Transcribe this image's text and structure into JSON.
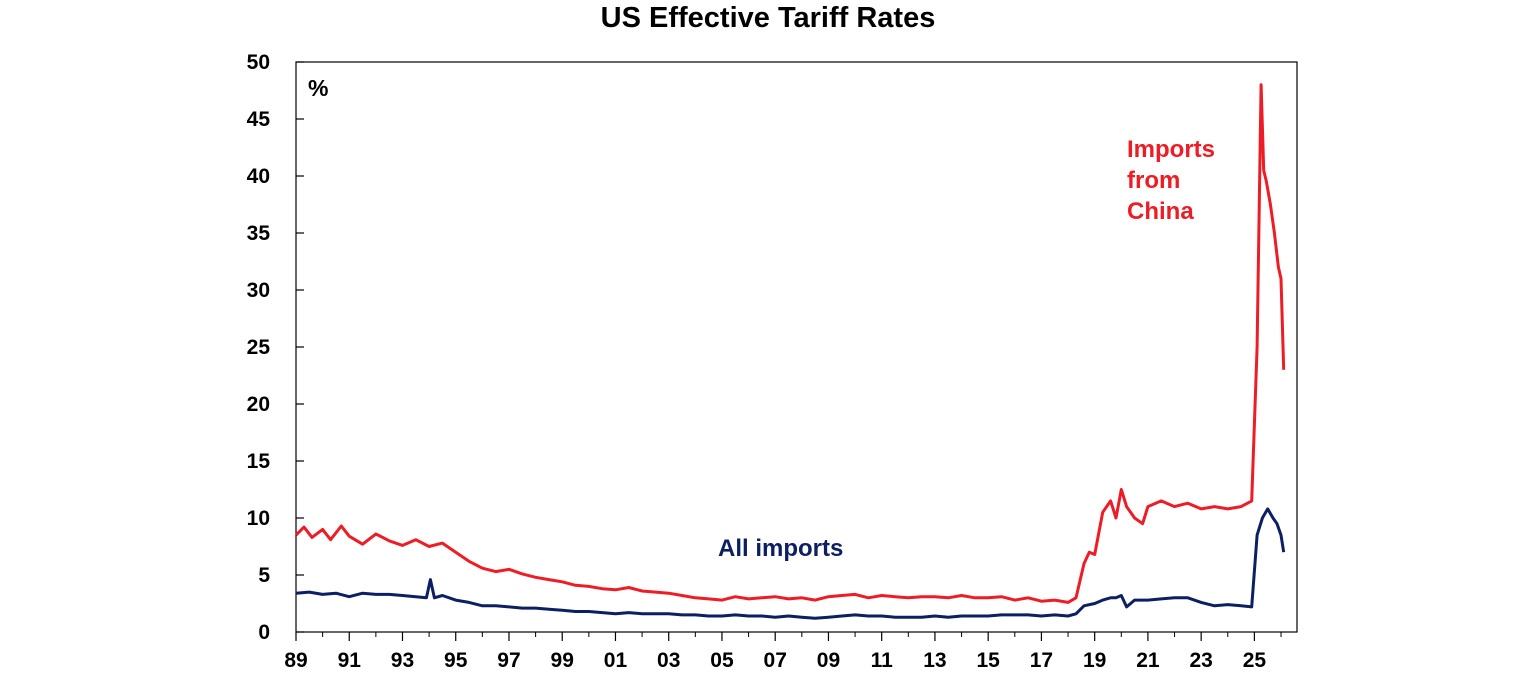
{
  "chart_data": {
    "type": "line",
    "title": "US Effective Tariff Rates",
    "unit_label": "%",
    "ylim": [
      0,
      50
    ],
    "y_ticks": [
      0,
      5,
      10,
      15,
      20,
      25,
      30,
      35,
      40,
      45,
      50
    ],
    "xlim": [
      1989,
      2026.6
    ],
    "x_ticks": [
      1989,
      1991,
      1993,
      1995,
      1997,
      1999,
      2001,
      2003,
      2005,
      2007,
      2009,
      2011,
      2013,
      2015,
      2017,
      2019,
      2021,
      2023,
      2025
    ],
    "x_tick_labels": [
      "89",
      "91",
      "93",
      "95",
      "97",
      "99",
      "01",
      "03",
      "05",
      "07",
      "09",
      "11",
      "13",
      "15",
      "17",
      "19",
      "21",
      "23",
      "25"
    ],
    "grid": false,
    "series": [
      {
        "name": "Imports from China",
        "label_lines": [
          "Imports",
          "from",
          "China"
        ],
        "color": "#ee1c25",
        "x": [
          1989.0,
          1989.3,
          1989.6,
          1990.0,
          1990.3,
          1990.7,
          1991.0,
          1991.5,
          1992.0,
          1992.5,
          1993.0,
          1993.5,
          1994.0,
          1994.5,
          1995.0,
          1995.5,
          1996.0,
          1996.5,
          1997.0,
          1997.5,
          1998.0,
          1998.5,
          1999.0,
          1999.5,
          2000.0,
          2000.5,
          2001.0,
          2001.5,
          2002.0,
          2002.5,
          2003.0,
          2003.5,
          2004.0,
          2004.5,
          2005.0,
          2005.5,
          2006.0,
          2006.5,
          2007.0,
          2007.5,
          2008.0,
          2008.5,
          2009.0,
          2009.5,
          2010.0,
          2010.5,
          2011.0,
          2011.5,
          2012.0,
          2012.5,
          2013.0,
          2013.5,
          2014.0,
          2014.5,
          2015.0,
          2015.5,
          2016.0,
          2016.5,
          2017.0,
          2017.5,
          2018.0,
          2018.3,
          2018.6,
          2018.8,
          2019.0,
          2019.3,
          2019.6,
          2019.8,
          2020.0,
          2020.2,
          2020.5,
          2020.8,
          2021.0,
          2021.5,
          2022.0,
          2022.5,
          2023.0,
          2023.5,
          2024.0,
          2024.5,
          2024.9,
          2025.1,
          2025.25,
          2025.35,
          2025.45,
          2025.6,
          2025.75,
          2025.9,
          2026.0,
          2026.1
        ],
        "values": [
          8.5,
          9.2,
          8.3,
          9.0,
          8.1,
          9.3,
          8.4,
          7.7,
          8.6,
          8.0,
          7.6,
          8.1,
          7.5,
          7.8,
          7.0,
          6.2,
          5.6,
          5.3,
          5.5,
          5.1,
          4.8,
          4.6,
          4.4,
          4.1,
          4.0,
          3.8,
          3.7,
          3.9,
          3.6,
          3.5,
          3.4,
          3.2,
          3.0,
          2.9,
          2.8,
          3.1,
          2.9,
          3.0,
          3.1,
          2.9,
          3.0,
          2.8,
          3.1,
          3.2,
          3.3,
          3.0,
          3.2,
          3.1,
          3.0,
          3.1,
          3.1,
          3.0,
          3.2,
          3.0,
          3.0,
          3.1,
          2.8,
          3.0,
          2.7,
          2.8,
          2.6,
          3.0,
          6.0,
          7.0,
          6.8,
          10.5,
          11.5,
          10.0,
          12.5,
          11.0,
          10.0,
          9.5,
          11.0,
          11.5,
          11.0,
          11.3,
          10.8,
          11.0,
          10.8,
          11.0,
          11.5,
          25.0,
          48.0,
          40.5,
          39.5,
          37.5,
          35.0,
          32.0,
          31.0,
          23.0
        ]
      },
      {
        "name": "All imports",
        "color": "#0d1f63",
        "x": [
          1989.0,
          1989.5,
          1990.0,
          1990.5,
          1991.0,
          1991.5,
          1992.0,
          1992.5,
          1993.0,
          1993.5,
          1993.9,
          1994.05,
          1994.2,
          1994.5,
          1995.0,
          1995.5,
          1996.0,
          1996.5,
          1997.0,
          1997.5,
          1998.0,
          1998.5,
          1999.0,
          1999.5,
          2000.0,
          2000.5,
          2001.0,
          2001.5,
          2002.0,
          2002.5,
          2003.0,
          2003.5,
          2004.0,
          2004.5,
          2005.0,
          2005.5,
          2006.0,
          2006.5,
          2007.0,
          2007.5,
          2008.0,
          2008.5,
          2009.0,
          2009.5,
          2010.0,
          2010.5,
          2011.0,
          2011.5,
          2012.0,
          2012.5,
          2013.0,
          2013.5,
          2014.0,
          2014.5,
          2015.0,
          2015.5,
          2016.0,
          2016.5,
          2017.0,
          2017.5,
          2018.0,
          2018.3,
          2018.6,
          2019.0,
          2019.3,
          2019.6,
          2019.8,
          2020.0,
          2020.2,
          2020.5,
          2021.0,
          2021.5,
          2022.0,
          2022.5,
          2023.0,
          2023.5,
          2024.0,
          2024.5,
          2024.9,
          2025.1,
          2025.3,
          2025.5,
          2025.7,
          2025.85,
          2026.0,
          2026.1
        ],
        "values": [
          3.4,
          3.5,
          3.3,
          3.4,
          3.1,
          3.4,
          3.3,
          3.3,
          3.2,
          3.1,
          3.0,
          4.6,
          3.0,
          3.2,
          2.8,
          2.6,
          2.3,
          2.3,
          2.2,
          2.1,
          2.1,
          2.0,
          1.9,
          1.8,
          1.8,
          1.7,
          1.6,
          1.7,
          1.6,
          1.6,
          1.6,
          1.5,
          1.5,
          1.4,
          1.4,
          1.5,
          1.4,
          1.4,
          1.3,
          1.4,
          1.3,
          1.2,
          1.3,
          1.4,
          1.5,
          1.4,
          1.4,
          1.3,
          1.3,
          1.3,
          1.4,
          1.3,
          1.4,
          1.4,
          1.4,
          1.5,
          1.5,
          1.5,
          1.4,
          1.5,
          1.4,
          1.6,
          2.3,
          2.5,
          2.8,
          3.0,
          3.0,
          3.2,
          2.2,
          2.8,
          2.8,
          2.9,
          3.0,
          3.0,
          2.6,
          2.3,
          2.4,
          2.3,
          2.2,
          8.5,
          10.0,
          10.8,
          10.0,
          9.5,
          8.5,
          7.0
        ]
      }
    ]
  }
}
